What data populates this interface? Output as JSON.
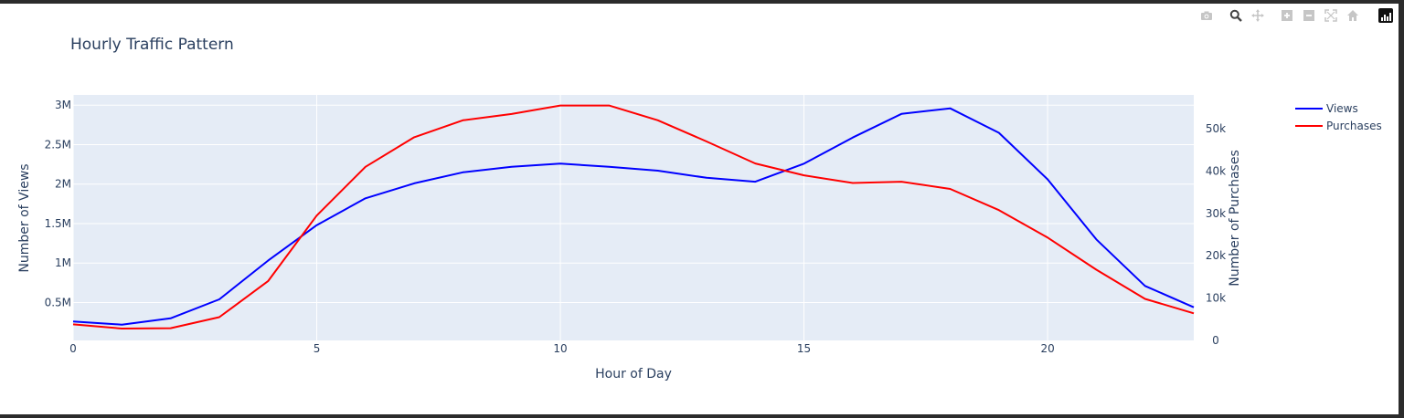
{
  "modebar": {
    "buttons": [
      {
        "name": "camera-icon"
      },
      {
        "name": "zoom-icon"
      },
      {
        "name": "pan-icon"
      },
      {
        "name": "zoom-in-icon"
      },
      {
        "name": "zoom-out-icon"
      },
      {
        "name": "autoscale-icon"
      },
      {
        "name": "reset-axes-icon"
      }
    ],
    "logo": "plotly-logo-icon"
  },
  "colors": {
    "plot_bg": "#e5ecf6",
    "grid": "#ffffff",
    "text": "#2a3f5f",
    "views": "#0000ff",
    "purchases": "#ff0000"
  },
  "chart_data": {
    "type": "line",
    "title": "Hourly Traffic Pattern",
    "xlabel": "Hour of Day",
    "ylabel": "Number of Views",
    "y2label": "Number of Purchases",
    "x": [
      0,
      1,
      2,
      3,
      4,
      5,
      6,
      7,
      8,
      9,
      10,
      11,
      12,
      13,
      14,
      15,
      16,
      17,
      18,
      19,
      20,
      21,
      22,
      23
    ],
    "xlim": [
      0,
      23
    ],
    "ylim": [
      20000,
      3130000
    ],
    "y2lim": [
      0,
      58000
    ],
    "xticks": [
      0,
      5,
      10,
      15,
      20
    ],
    "xtick_labels": [
      "0",
      "5",
      "10",
      "15",
      "20"
    ],
    "yticks": [
      500000,
      1000000,
      1500000,
      2000000,
      2500000,
      3000000
    ],
    "ytick_labels": [
      "0.5M",
      "1M",
      "1.5M",
      "2M",
      "2.5M",
      "3M"
    ],
    "y2ticks": [
      0,
      10000,
      20000,
      30000,
      40000,
      50000
    ],
    "y2tick_labels": [
      "0",
      "10k",
      "20k",
      "30k",
      "40k",
      "50k"
    ],
    "grid": true,
    "legend_position": "top-right",
    "series": [
      {
        "name": "Views",
        "axis": "y",
        "color": "#0000ff",
        "values": [
          260000,
          220000,
          300000,
          540000,
          1030000,
          1480000,
          1820000,
          2010000,
          2150000,
          2220000,
          2260000,
          2220000,
          2170000,
          2080000,
          2030000,
          2260000,
          2590000,
          2890000,
          2960000,
          2650000,
          2060000,
          1300000,
          710000,
          440000
        ]
      },
      {
        "name": "Purchases",
        "axis": "y2",
        "color": "#ff0000",
        "values": [
          3800,
          2800,
          2900,
          5500,
          14000,
          29500,
          41000,
          48000,
          52000,
          53500,
          55500,
          55500,
          52000,
          47000,
          41800,
          39000,
          37200,
          37500,
          35800,
          30800,
          24300,
          16700,
          9800,
          6400
        ]
      }
    ]
  }
}
